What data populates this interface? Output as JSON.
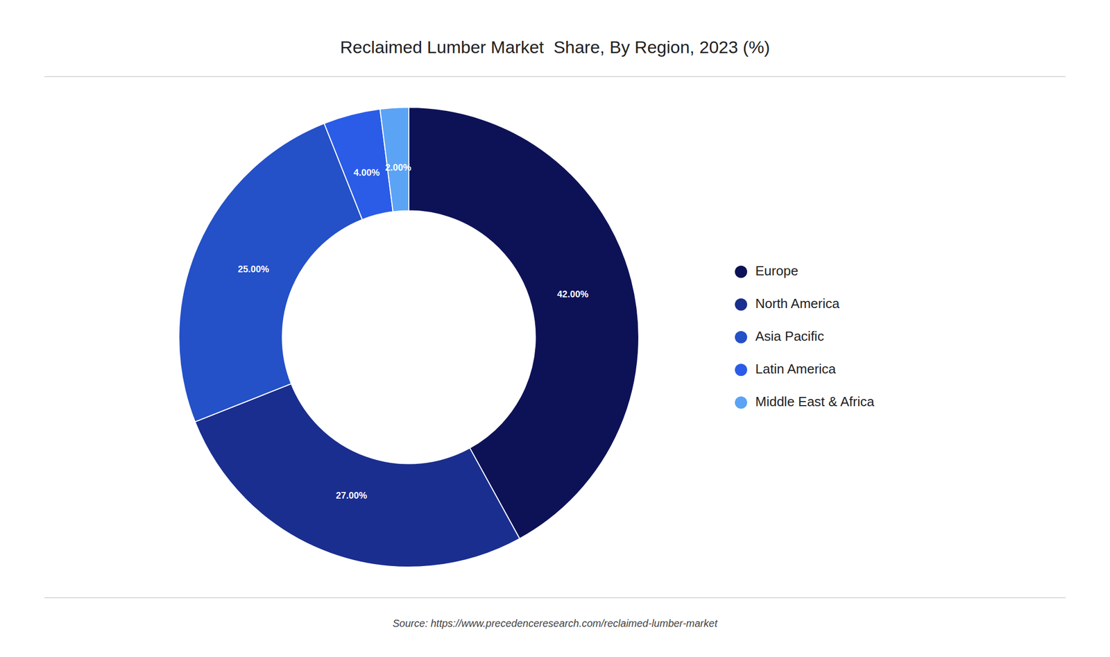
{
  "chart_data": {
    "type": "donut",
    "title": "Reclaimed Lumber Market  Share, By Region, 2023 (%)",
    "categories": [
      "Europe",
      "North America",
      "Asia Pacific",
      "Latin America",
      "Middle East & Africa"
    ],
    "values": [
      42.0,
      27.0,
      25.0,
      4.0,
      2.0
    ],
    "value_labels": [
      "42.00%",
      "27.00%",
      "25.00%",
      "4.00%",
      "2.00%"
    ],
    "colors": [
      "#0d1257",
      "#1a2e8f",
      "#2450c8",
      "#2a5ce8",
      "#5ba3f5"
    ],
    "data_labels": true,
    "legend": "right",
    "annotations": [
      "Source: https://www.precedenceresearch.com/reclaimed-lumber-market"
    ]
  }
}
